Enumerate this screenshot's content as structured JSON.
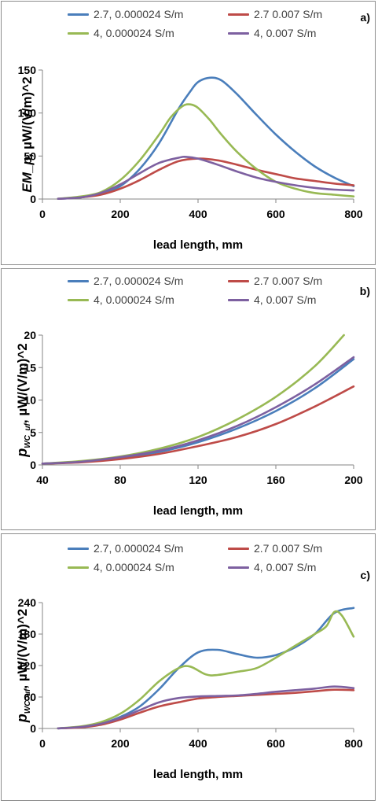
{
  "chart_data": [
    {
      "type": "line",
      "panel_label": "a)",
      "xlabel": "lead length, mm",
      "ylabel": "EM_p,  µW/(V/m)^2",
      "xlim": [
        0,
        800
      ],
      "ylim": [
        0,
        150
      ],
      "xticks": [
        0,
        200,
        400,
        600,
        800
      ],
      "yticks": [
        0,
        50,
        100,
        150
      ],
      "legend_position": "top",
      "series": [
        {
          "name": "2.7, 0.000024 S/m",
          "color": "#4a7ebb",
          "x": [
            40,
            100,
            150,
            200,
            250,
            300,
            350,
            380,
            400,
            430,
            460,
            500,
            550,
            600,
            650,
            700,
            750,
            800
          ],
          "y": [
            0.3,
            2,
            6,
            15,
            35,
            65,
            105,
            125,
            136,
            141,
            138,
            122,
            98,
            75,
            55,
            38,
            25,
            15
          ]
        },
        {
          "name": "2.7 0.007 S/m",
          "color": "#be4b48",
          "x": [
            40,
            100,
            150,
            200,
            250,
            300,
            350,
            400,
            450,
            500,
            550,
            600,
            650,
            700,
            750,
            800
          ],
          "y": [
            0.3,
            2,
            5,
            12,
            22,
            34,
            44,
            47,
            45,
            40,
            34,
            29,
            24,
            21,
            18,
            16
          ]
        },
        {
          "name": "4, 0.000024 S/m",
          "color": "#98b954",
          "x": [
            40,
            100,
            150,
            200,
            250,
            300,
            330,
            360,
            380,
            400,
            430,
            460,
            500,
            550,
            600,
            650,
            700,
            750,
            800
          ],
          "y": [
            0.3,
            3,
            8,
            22,
            45,
            75,
            95,
            108,
            110,
            106,
            92,
            75,
            55,
            35,
            20,
            12,
            7,
            5,
            3
          ]
        },
        {
          "name": "4, 0.007 S/m",
          "color": "#7d60a0",
          "x": [
            40,
            100,
            150,
            200,
            250,
            300,
            350,
            370,
            400,
            450,
            500,
            550,
            600,
            650,
            700,
            750,
            800
          ],
          "y": [
            0.3,
            2,
            7,
            17,
            30,
            42,
            48,
            49,
            47,
            40,
            32,
            25,
            20,
            16,
            13,
            11,
            10
          ]
        }
      ]
    },
    {
      "type": "line",
      "panel_label": "b)",
      "xlabel": "lead length, mm",
      "ylabel_main": "p",
      "ylabel_sub": "WC_uf",
      "ylabel_rest": ",  µW/(V/m)^2",
      "xlim": [
        40,
        200
      ],
      "ylim": [
        0,
        20
      ],
      "xticks": [
        40,
        80,
        120,
        160,
        200
      ],
      "yticks": [
        0,
        5,
        10,
        15,
        20
      ],
      "legend_position": "top",
      "series": [
        {
          "name": "2.7, 0.000024 S/m",
          "color": "#4a7ebb",
          "x": [
            40,
            60,
            80,
            100,
            120,
            140,
            160,
            180,
            200
          ],
          "y": [
            0.2,
            0.5,
            1.1,
            2.0,
            3.5,
            5.6,
            8.3,
            11.8,
            16.3
          ]
        },
        {
          "name": "2.7 0.007 S/m",
          "color": "#be4b48",
          "x": [
            40,
            60,
            80,
            100,
            120,
            140,
            160,
            180,
            200
          ],
          "y": [
            0.2,
            0.4,
            0.9,
            1.7,
            2.9,
            4.3,
            6.3,
            9.0,
            12.1
          ]
        },
        {
          "name": "4, 0.000024 S/m",
          "color": "#98b954",
          "x": [
            40,
            60,
            80,
            100,
            120,
            140,
            160,
            180,
            195
          ],
          "y": [
            0.2,
            0.6,
            1.3,
            2.5,
            4.3,
            7.0,
            10.5,
            15.2,
            20.0
          ]
        },
        {
          "name": "4, 0.007 S/m",
          "color": "#7d60a0",
          "x": [
            40,
            60,
            80,
            100,
            120,
            140,
            160,
            180,
            200
          ],
          "y": [
            0.2,
            0.5,
            1.2,
            2.2,
            3.8,
            6.0,
            8.9,
            12.4,
            16.6
          ]
        }
      ]
    },
    {
      "type": "line",
      "panel_label": "c)",
      "xlabel": "lead length, mm",
      "ylabel_main": "p",
      "ylabel_sub": "WC_uf",
      "ylabel_rest": ",  µW/(V/m)^2",
      "xlim": [
        0,
        800
      ],
      "ylim": [
        0,
        240
      ],
      "xticks": [
        0,
        200,
        400,
        600,
        800
      ],
      "yticks": [
        0,
        60,
        120,
        180,
        240
      ],
      "legend_position": "top",
      "series": [
        {
          "name": "2.7, 0.000024 S/m",
          "color": "#4a7ebb",
          "x": [
            40,
            100,
            150,
            200,
            250,
            300,
            350,
            400,
            450,
            500,
            550,
            600,
            650,
            700,
            750,
            800
          ],
          "y": [
            0.3,
            3,
            9,
            22,
            42,
            75,
            115,
            145,
            150,
            142,
            135,
            140,
            155,
            180,
            220,
            230
          ]
        },
        {
          "name": "2.7 0.007 S/m",
          "color": "#be4b48",
          "x": [
            40,
            100,
            150,
            200,
            250,
            300,
            350,
            400,
            450,
            500,
            550,
            600,
            650,
            700,
            750,
            800
          ],
          "y": [
            0.3,
            2,
            7,
            17,
            30,
            42,
            50,
            57,
            60,
            62,
            64,
            66,
            68,
            71,
            74,
            73
          ]
        },
        {
          "name": "4, 0.000024 S/m",
          "color": "#98b954",
          "x": [
            40,
            100,
            150,
            200,
            250,
            300,
            350,
            380,
            420,
            450,
            500,
            550,
            600,
            650,
            700,
            730,
            750,
            770,
            800
          ],
          "y": [
            0.3,
            4,
            12,
            28,
            55,
            90,
            115,
            118,
            103,
            102,
            108,
            115,
            135,
            158,
            180,
            195,
            222,
            215,
            175
          ]
        },
        {
          "name": "4, 0.007 S/m",
          "color": "#7d60a0",
          "x": [
            40,
            100,
            150,
            200,
            250,
            300,
            350,
            400,
            450,
            500,
            550,
            600,
            650,
            700,
            750,
            800
          ],
          "y": [
            0.3,
            3,
            9,
            20,
            35,
            50,
            58,
            61,
            62,
            63,
            66,
            70,
            73,
            76,
            80,
            77
          ]
        }
      ]
    }
  ]
}
